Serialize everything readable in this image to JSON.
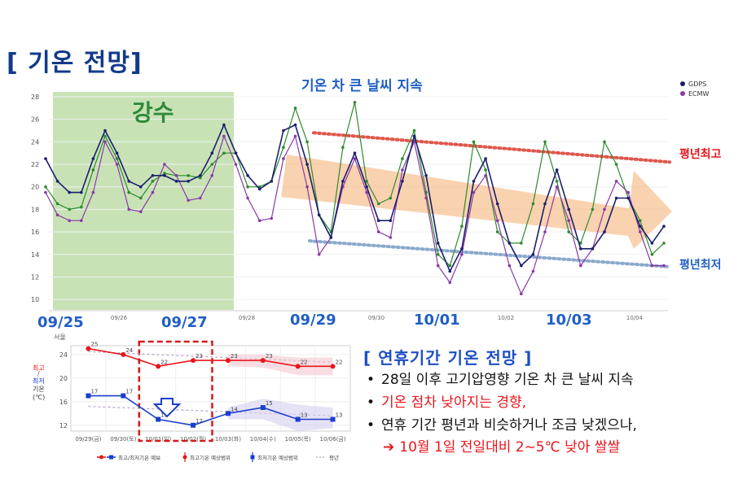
{
  "page_title": "[ 기온 전망]",
  "chart_data": [
    {
      "type": "line",
      "title": "",
      "annotations": {
        "rain_label": "강수",
        "big_swing_label": "기온 차 큰 날씨 지속",
        "normal_max_label": "평년최고",
        "normal_min_label": "평년최저"
      },
      "ylim": [
        9,
        28.5
      ],
      "y_ticks": [
        10,
        12,
        14,
        16,
        18,
        20,
        22,
        24,
        26,
        28
      ],
      "x_ticks": [
        "09/26",
        "09/28",
        "09/30",
        "10/02",
        "10/04"
      ],
      "date_labels": [
        "09/25",
        "09/27",
        "09/29",
        "10/01",
        "10/03"
      ],
      "legend": [
        "GDPS",
        "ECMW"
      ],
      "legend_position": "top-right",
      "rain_period": [
        "09/25",
        "09/28"
      ],
      "colors": {
        "gdps": "#1a1f6e",
        "ecmw": "#8a3aa6",
        "green": "#2f8a2f",
        "rain_fill": "#c8e2b6",
        "normal_max": "#e0564a",
        "normal_min": "#8aa8cc",
        "trend": "#f5b47a",
        "date_label": "#1f5fc4"
      },
      "series": [
        {
          "name": "GDPS",
          "values": [
            22.5,
            20.5,
            19.5,
            19.5,
            22.5,
            25,
            23,
            20.5,
            20,
            21,
            21,
            20.5,
            20.5,
            21,
            23,
            25.5,
            23,
            21,
            19.8,
            20.5,
            25,
            25.5,
            22,
            17.5,
            15.5,
            20.5,
            23,
            20,
            17,
            17,
            20.5,
            24.5,
            21,
            15,
            12.5,
            14.5,
            20.5,
            22.5,
            18.5,
            15,
            13,
            14,
            18.5,
            21.5,
            18,
            14.5,
            14.5,
            16,
            19,
            19,
            16.5,
            15,
            16.5
          ]
        },
        {
          "name": "ECMW",
          "values": [
            19.5,
            17.5,
            17,
            17,
            19.5,
            24,
            22,
            18,
            17.8,
            19.5,
            22,
            21,
            18.8,
            19,
            21,
            24.5,
            22,
            19,
            17,
            17.2,
            22.5,
            24.5,
            20,
            14,
            15.5,
            20,
            22.5,
            19.5,
            16,
            15.5,
            21.5,
            24,
            19,
            13,
            11.5,
            14,
            19.5,
            21,
            17,
            13,
            10.5,
            12.5,
            16,
            20,
            17,
            13,
            14.5,
            18,
            20.5,
            19.5,
            16,
            13,
            13
          ]
        },
        {
          "name": "Green",
          "values": [
            20,
            18.5,
            18,
            18.2,
            21.5,
            24.5,
            22.5,
            19.5,
            19,
            20.5,
            21.2,
            21,
            21,
            20.8,
            22,
            23,
            23,
            20,
            20,
            20.5,
            23.5,
            27,
            24,
            17.5,
            16,
            23.5,
            27.5,
            20.5,
            18.5,
            19,
            22.5,
            25,
            19.5,
            14,
            13,
            16.5,
            24,
            21.5,
            16,
            15,
            15,
            18.5,
            24,
            20.5,
            16,
            15,
            18,
            24,
            22,
            19,
            17,
            14,
            15
          ]
        }
      ],
      "normal_max_range": [
        24.8,
        22.2
      ],
      "normal_min_range": [
        15.2,
        12.9
      ]
    },
    {
      "type": "line",
      "station": "서울",
      "ylim": [
        11,
        25.5
      ],
      "y_ticks": [
        12,
        16,
        20,
        24
      ],
      "y_axis_labels": {
        "max": "최고",
        "sep": "/",
        "min": "최저",
        "temp": "기온",
        "unit": "(℃)"
      },
      "categories": [
        "09/29(금)",
        "09/30(토)",
        "10/01(일)",
        "10/02(월)",
        "10/03(화)",
        "10/04(수)",
        "10/05(목)",
        "10/06(금)"
      ],
      "max_series": {
        "x": [
          0,
          1,
          2,
          3,
          4,
          5,
          6,
          7
        ],
        "values": [
          25,
          24,
          22,
          23,
          23,
          23,
          22,
          22
        ],
        "labels": [
          "25",
          "24",
          "22",
          "23",
          "23",
          "23",
          "22",
          "22"
        ]
      },
      "min_series": {
        "x": [
          0,
          1,
          2,
          3,
          4,
          5,
          6,
          7
        ],
        "values": [
          17,
          17,
          13,
          12,
          14,
          15,
          13,
          13
        ],
        "labels": [
          "17",
          "17",
          "13",
          "12",
          "14",
          "15",
          "13",
          "13"
        ]
      },
      "legend": [
        "최고/최저기온 예보",
        "최고기온 예상범위",
        "최저기온 예상범위",
        "평년"
      ],
      "colors": {
        "max": "#e8161b",
        "min": "#1a3fcc",
        "normal": "#b8a0cc",
        "highlight": "#d41b1b"
      }
    }
  ],
  "panel": {
    "title": "[ 연휴기간 기온 전망 ]",
    "bullet1": "28일 이후 고기압영향 기온 차 큰 날씨 지속",
    "bullet2": "기온 점차 낮아지는 경향,",
    "bullet3": "연휴 기간 평년과 비슷하거나 조금 낮겠으나,",
    "arrow_text": "10월 1일 전일대비 2~5℃ 낮아 쌀쌀"
  }
}
